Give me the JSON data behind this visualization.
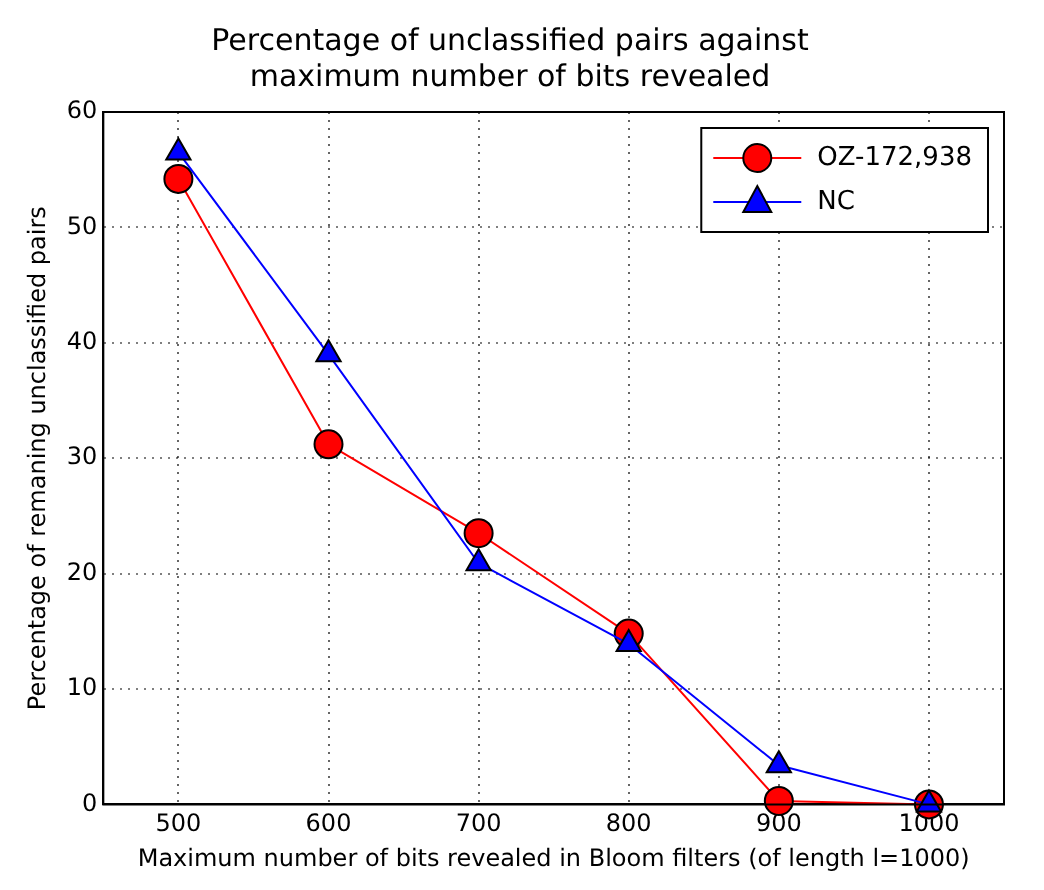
{
  "chart_data": {
    "type": "line",
    "title": "Percentage of unclassified pairs against\nmaximum number of bits revealed",
    "xlabel": "Maximum number of bits revealed in Bloom filters (of length l=1000)",
    "ylabel": "Percentage of remaning unclassified pairs",
    "x": [
      500,
      600,
      700,
      800,
      900,
      1000
    ],
    "series": [
      {
        "name": "OZ-172,938",
        "color": "#ff0000",
        "marker": "circle",
        "values": [
          54.2,
          31.2,
          23.5,
          14.8,
          0.3,
          0
        ]
      },
      {
        "name": "NC",
        "color": "#0000ff",
        "marker": "triangle",
        "values": [
          56.5,
          39.0,
          20.9,
          13.9,
          3.4,
          0
        ]
      }
    ],
    "xlim": [
      450,
      1050
    ],
    "xticks": [
      500,
      600,
      700,
      800,
      900,
      1000
    ],
    "ylim": [
      0,
      60
    ],
    "yticks": [
      0,
      10,
      20,
      30,
      40,
      50,
      60
    ],
    "grid": true,
    "legend": "top right",
    "line_style": "solid"
  }
}
